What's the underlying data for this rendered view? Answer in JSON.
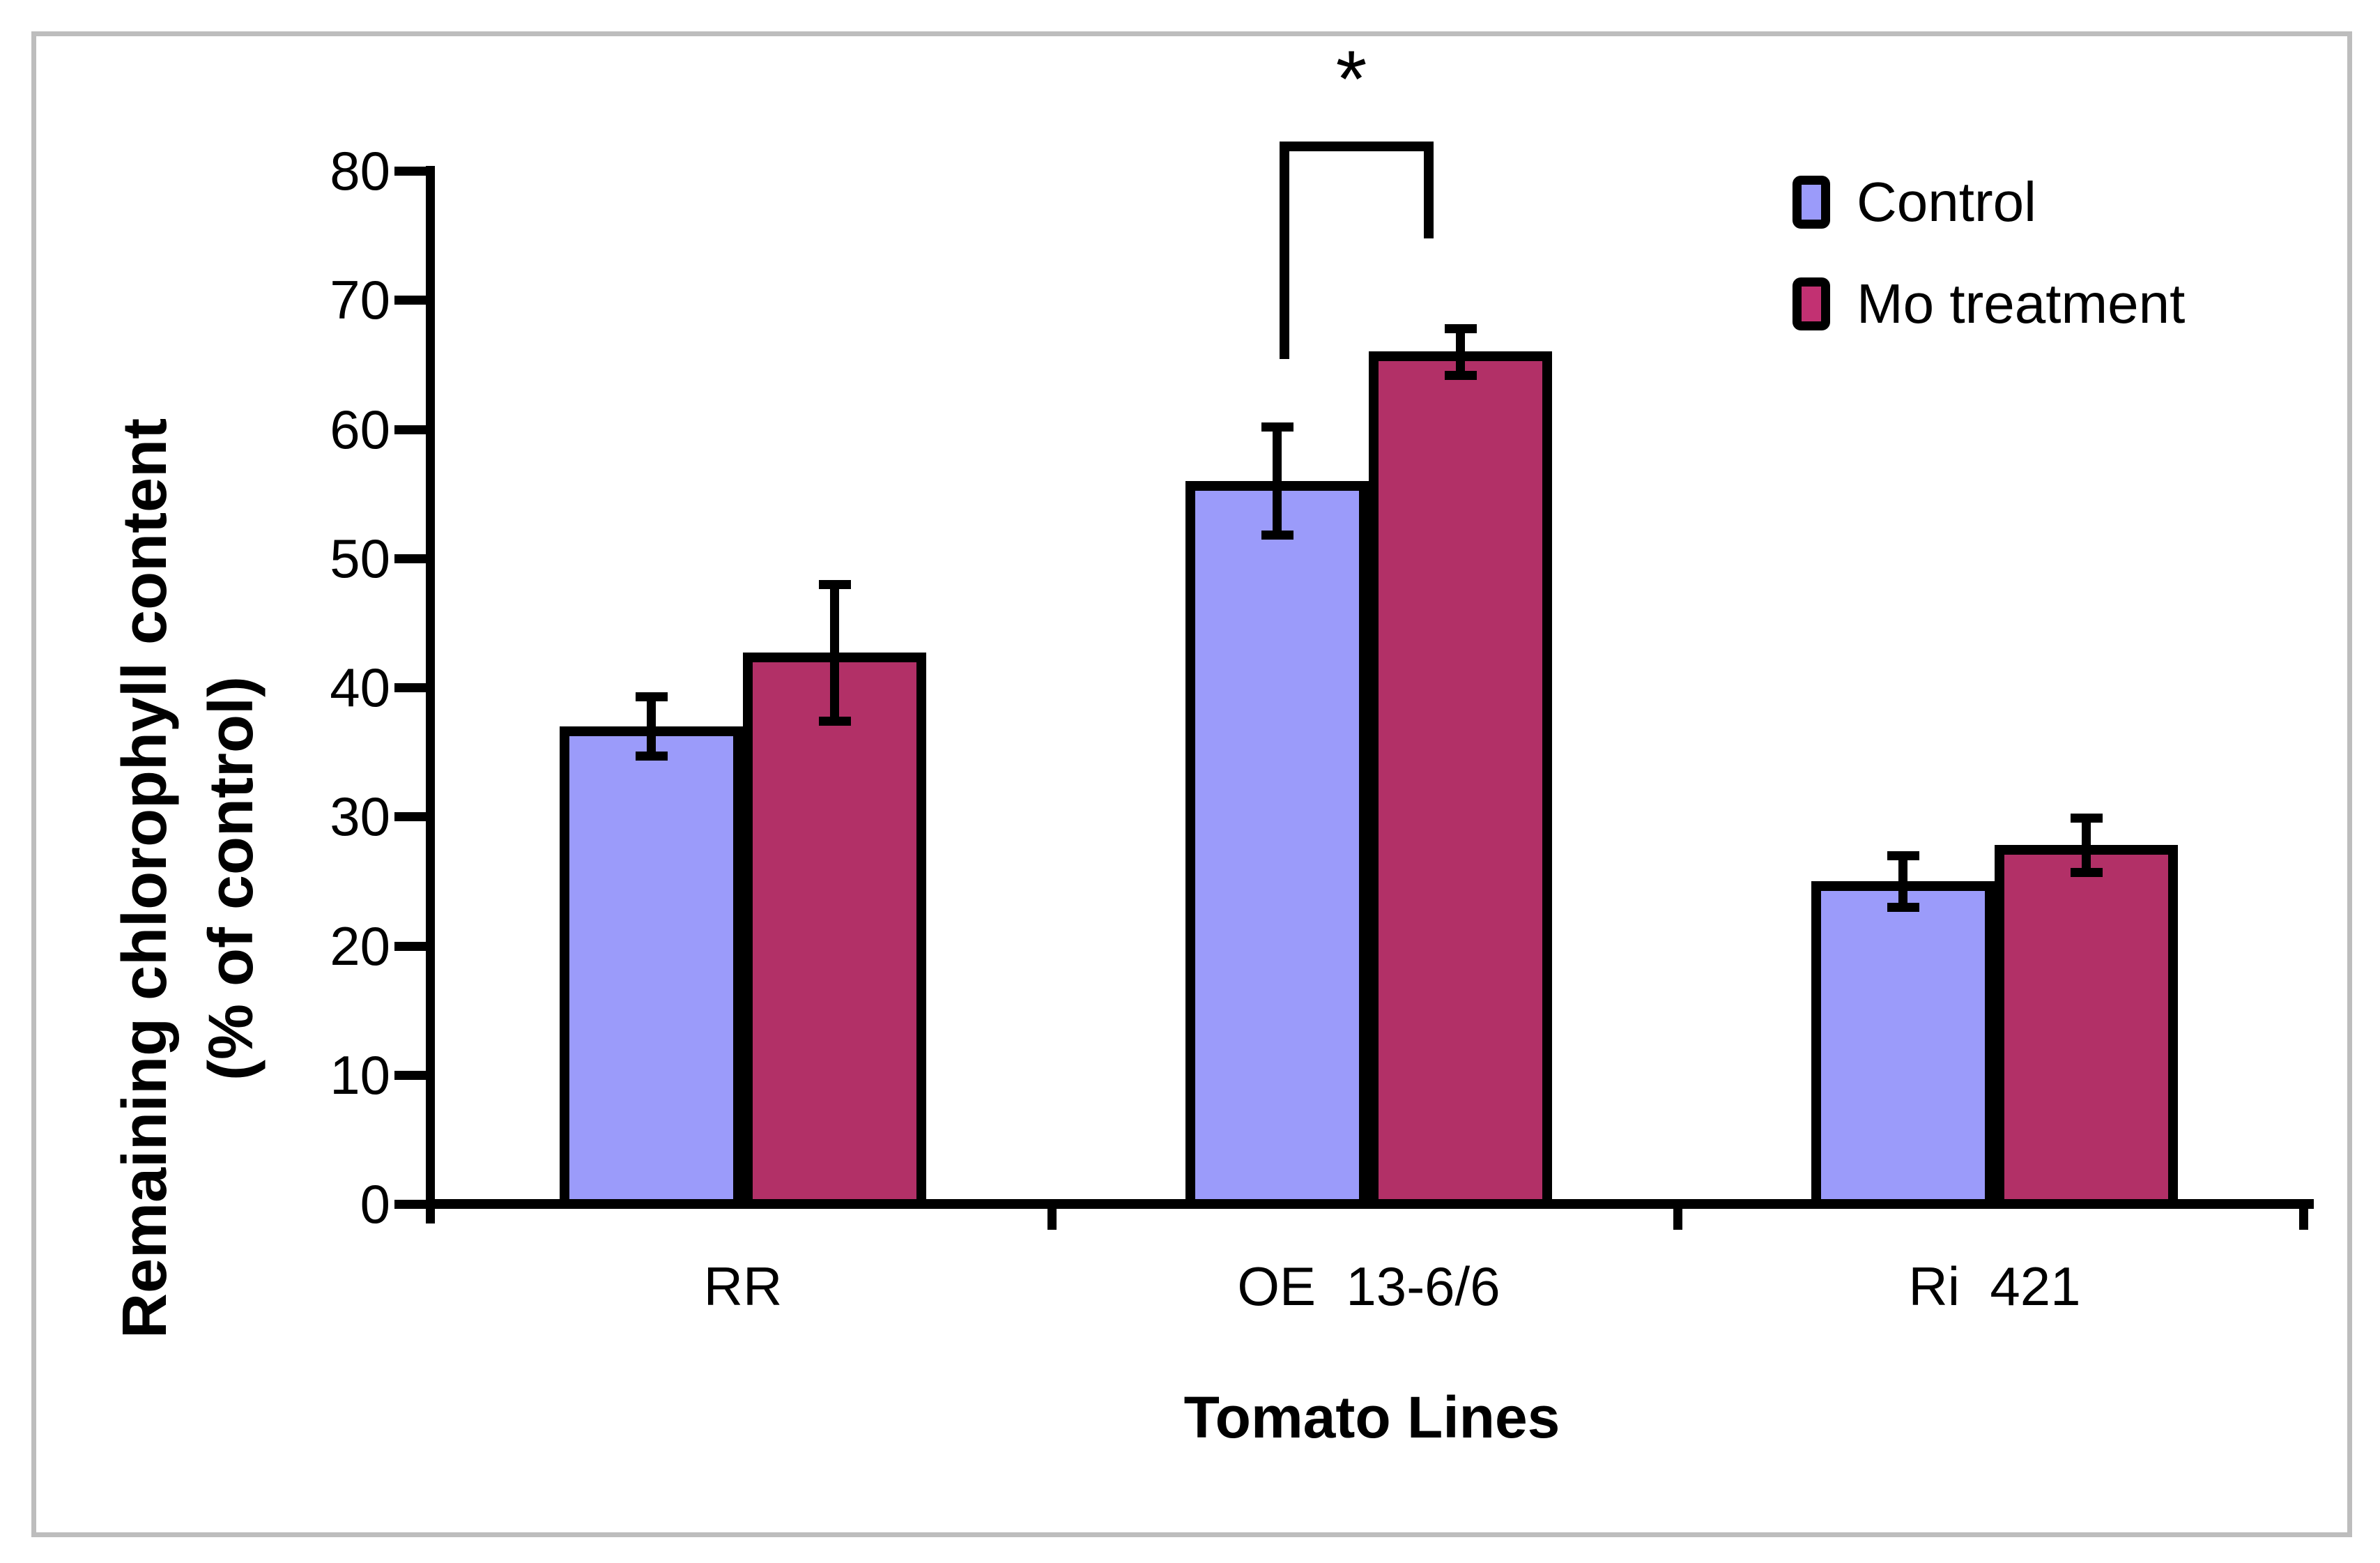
{
  "figure": {
    "frame_color": "#bdbdbd",
    "background": "#ffffff"
  },
  "legend": {
    "position": "top-right",
    "items": [
      {
        "label": "Control",
        "swatch_color": "#9b9bfa"
      },
      {
        "label": "Mo treatment",
        "swatch_color": "#c23172"
      }
    ]
  },
  "chart_data": {
    "type": "bar",
    "title": "",
    "xlabel": "Tomato Lines",
    "ylabel_line1": "Remaining chlorophyll content",
    "ylabel_line2": "(% of control)",
    "categories": [
      "RR",
      "OE  13-6/6",
      "Ri  421"
    ],
    "ylim": [
      0,
      80
    ],
    "yticks": [
      0,
      10,
      20,
      30,
      40,
      50,
      60,
      70,
      80
    ],
    "grid": false,
    "legend_position": "top-right",
    "axis_color": "#000000",
    "series": [
      {
        "name": "Control",
        "fill": "#9b9bfa",
        "legend_fill": "#9b9bfa",
        "values": [
          37,
          56,
          25
        ],
        "errors": [
          2.3,
          4.2,
          2.0
        ]
      },
      {
        "name": "Mo treatment",
        "fill": "#b23067",
        "legend_fill": "#c23172",
        "values": [
          42.7,
          66,
          27.8
        ],
        "errors": [
          5.3,
          1.8,
          2.1
        ]
      }
    ],
    "significance": {
      "label": "*",
      "category": "OE  13-6/6",
      "between": [
        "Control",
        "Mo treatment"
      ]
    }
  }
}
